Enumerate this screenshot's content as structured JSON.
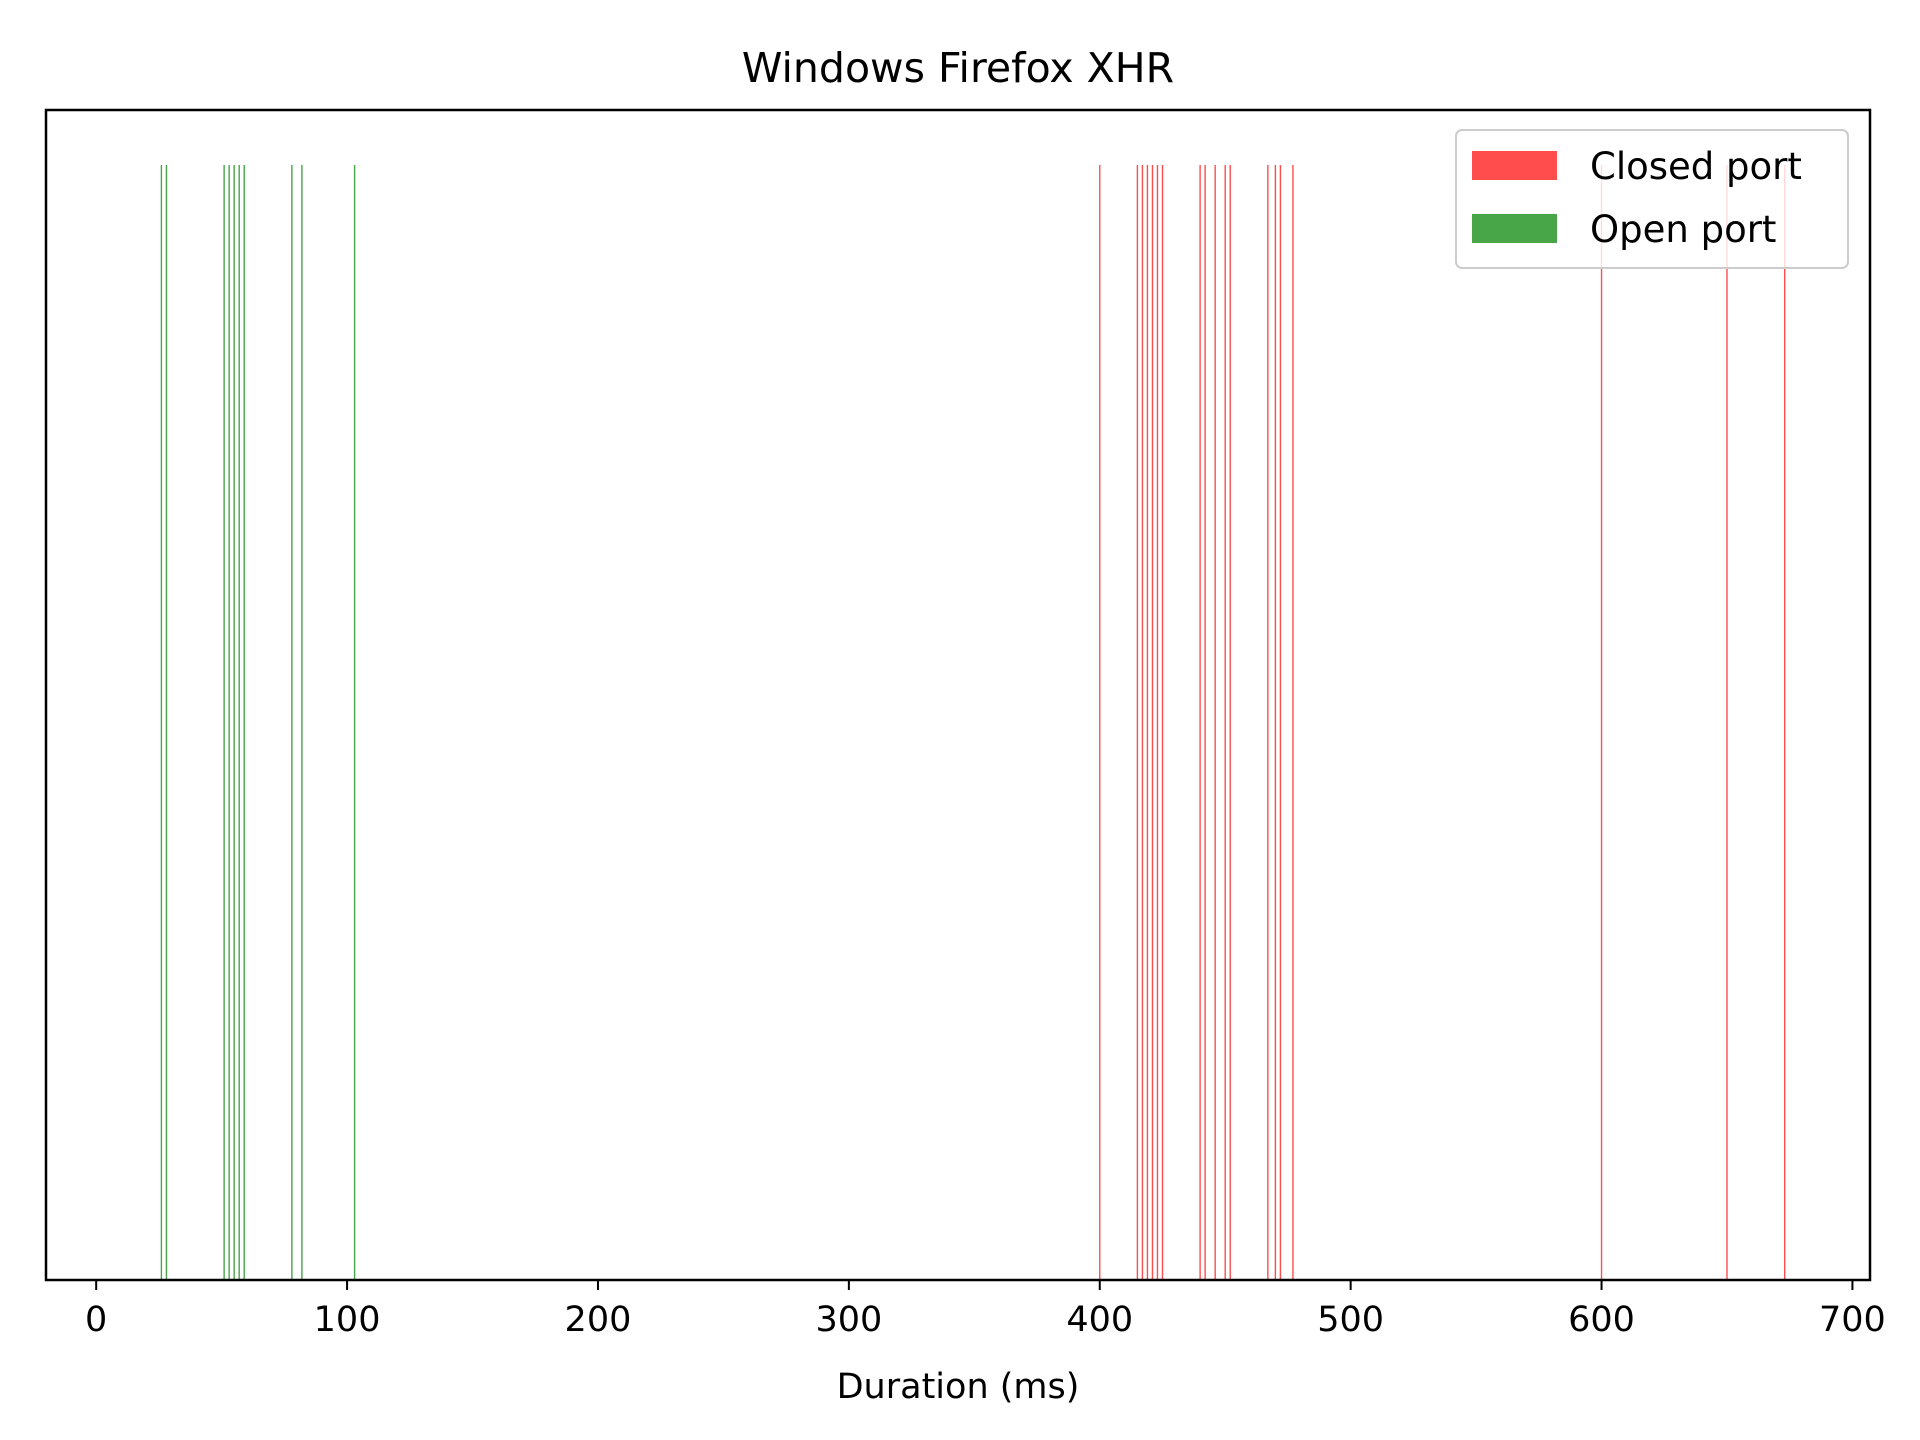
{
  "chart_data": {
    "type": "eventplot",
    "title": "Windows Firefox XHR",
    "xlabel": "Duration (ms)",
    "ylabel": "",
    "xlim": [
      -20,
      707
    ],
    "xticks": [
      0,
      100,
      200,
      300,
      400,
      500,
      600,
      700
    ],
    "xtick_labels": [
      "0",
      "100",
      "200",
      "300",
      "400",
      "500",
      "600",
      "700"
    ],
    "show_yaxis": false,
    "grid": false,
    "legend_position": "top-right",
    "series": [
      {
        "name": "Closed port",
        "color": "#ff4c4c",
        "values": [
          400,
          415,
          417,
          419,
          421,
          423,
          425,
          440,
          442,
          446,
          450,
          452,
          467,
          470,
          472,
          477,
          600,
          650,
          673
        ]
      },
      {
        "name": "Open port",
        "color": "#48a548",
        "values": [
          26,
          28,
          51,
          53,
          55,
          57,
          59,
          78,
          82,
          103
        ]
      }
    ]
  }
}
